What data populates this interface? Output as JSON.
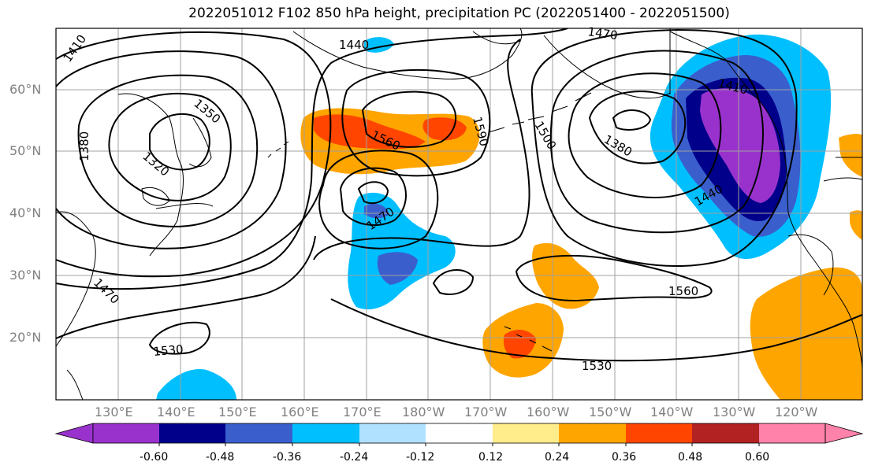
{
  "title": "2022051012 F102 850 hPa height, precipitation PC (2022051400 - 2022051500)",
  "lat_labels": [
    "60°N",
    "50°N",
    "40°N",
    "30°N",
    "20°N"
  ],
  "lon_labels": [
    "130°E",
    "140°E",
    "150°E",
    "160°E",
    "170°E",
    "180°W",
    "170°W",
    "160°W",
    "150°W",
    "140°W",
    "130°W",
    "120°W"
  ],
  "contour_labels": [
    "1410",
    "1440",
    "1470",
    "1350",
    "1380",
    "1320",
    "1560",
    "1590",
    "1500",
    "1410",
    "1380",
    "1440",
    "1470",
    "1470",
    "1560",
    "1530",
    "1530"
  ],
  "colorbar": {
    "ticks": [
      "-0.60",
      "-0.48",
      "-0.36",
      "-0.24",
      "-0.12",
      "0.12",
      "0.24",
      "0.36",
      "0.48",
      "0.60"
    ],
    "colors": [
      "#9932cc",
      "#00008b",
      "#3a5fcd",
      "#00bfff",
      "#b0e2ff",
      "#ffffff",
      "#ffec8b",
      "#ffa500",
      "#ff4500",
      "#b22222",
      "#ff82ab"
    ]
  }
}
